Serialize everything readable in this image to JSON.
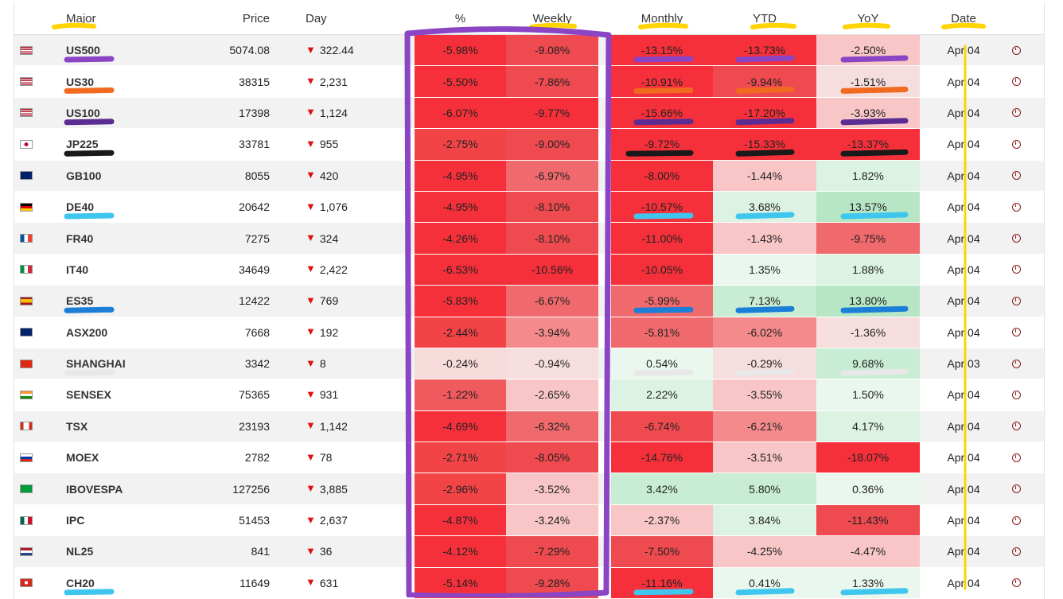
{
  "columns": {
    "major": "Major",
    "price": "Price",
    "day": "Day",
    "pct": "%",
    "weekly": "Weekly",
    "monthly": "Monthly",
    "ytd": "YTD",
    "yoy": "YoY",
    "date": "Date"
  },
  "rows": [
    {
      "flag": "us",
      "symbol": "US500",
      "price": "5074.08",
      "day": "322.44",
      "pct": "-5.98%",
      "weekly": "-9.08%",
      "monthly": "-13.15%",
      "ytd": "-13.73%",
      "yoy": "-2.50%",
      "date": "Apr 04"
    },
    {
      "flag": "us",
      "symbol": "US30",
      "price": "38315",
      "day": "2,231",
      "pct": "-5.50%",
      "weekly": "-7.86%",
      "monthly": "-10.91%",
      "ytd": "-9.94%",
      "yoy": "-1.51%",
      "date": "Apr 04"
    },
    {
      "flag": "us",
      "symbol": "US100",
      "price": "17398",
      "day": "1,124",
      "pct": "-6.07%",
      "weekly": "-9.77%",
      "monthly": "-15.66%",
      "ytd": "-17.20%",
      "yoy": "-3.93%",
      "date": "Apr 04"
    },
    {
      "flag": "jp",
      "symbol": "JP225",
      "price": "33781",
      "day": "955",
      "pct": "-2.75%",
      "weekly": "-9.00%",
      "monthly": "-9.72%",
      "ytd": "-15.33%",
      "yoy": "-13.37%",
      "date": "Apr 04"
    },
    {
      "flag": "gb",
      "symbol": "GB100",
      "price": "8055",
      "day": "420",
      "pct": "-4.95%",
      "weekly": "-6.97%",
      "monthly": "-8.00%",
      "ytd": "-1.44%",
      "yoy": "1.82%",
      "date": "Apr 04"
    },
    {
      "flag": "de",
      "symbol": "DE40",
      "price": "20642",
      "day": "1,076",
      "pct": "-4.95%",
      "weekly": "-8.10%",
      "monthly": "-10.57%",
      "ytd": "3.68%",
      "yoy": "13.57%",
      "date": "Apr 04"
    },
    {
      "flag": "fr",
      "symbol": "FR40",
      "price": "7275",
      "day": "324",
      "pct": "-4.26%",
      "weekly": "-8.10%",
      "monthly": "-11.00%",
      "ytd": "-1.43%",
      "yoy": "-9.75%",
      "date": "Apr 04"
    },
    {
      "flag": "it",
      "symbol": "IT40",
      "price": "34649",
      "day": "2,422",
      "pct": "-6.53%",
      "weekly": "-10.56%",
      "monthly": "-10.05%",
      "ytd": "1.35%",
      "yoy": "1.88%",
      "date": "Apr 04"
    },
    {
      "flag": "es",
      "symbol": "ES35",
      "price": "12422",
      "day": "769",
      "pct": "-5.83%",
      "weekly": "-6.67%",
      "monthly": "-5.99%",
      "ytd": "7.13%",
      "yoy": "13.80%",
      "date": "Apr 04"
    },
    {
      "flag": "au",
      "symbol": "ASX200",
      "price": "7668",
      "day": "192",
      "pct": "-2.44%",
      "weekly": "-3.94%",
      "monthly": "-5.81%",
      "ytd": "-6.02%",
      "yoy": "-1.36%",
      "date": "Apr 04"
    },
    {
      "flag": "cn",
      "symbol": "SHANGHAI",
      "price": "3342",
      "day": "8",
      "pct": "-0.24%",
      "weekly": "-0.94%",
      "monthly": "0.54%",
      "ytd": "-0.29%",
      "yoy": "9.68%",
      "date": "Apr 03"
    },
    {
      "flag": "in",
      "symbol": "SENSEX",
      "price": "75365",
      "day": "931",
      "pct": "-1.22%",
      "weekly": "-2.65%",
      "monthly": "2.22%",
      "ytd": "-3.55%",
      "yoy": "1.50%",
      "date": "Apr 04"
    },
    {
      "flag": "ca",
      "symbol": "TSX",
      "price": "23193",
      "day": "1,142",
      "pct": "-4.69%",
      "weekly": "-6.32%",
      "monthly": "-6.74%",
      "ytd": "-6.21%",
      "yoy": "4.17%",
      "date": "Apr 04"
    },
    {
      "flag": "ru",
      "symbol": "MOEX",
      "price": "2782",
      "day": "78",
      "pct": "-2.71%",
      "weekly": "-8.05%",
      "monthly": "-14.76%",
      "ytd": "-3.51%",
      "yoy": "-18.07%",
      "date": "Apr 04"
    },
    {
      "flag": "br",
      "symbol": "IBOVESPA",
      "price": "127256",
      "day": "3,885",
      "pct": "-2.96%",
      "weekly": "-3.52%",
      "monthly": "3.42%",
      "ytd": "5.80%",
      "yoy": "0.36%",
      "date": "Apr 04"
    },
    {
      "flag": "mx",
      "symbol": "IPC",
      "price": "51453",
      "day": "2,637",
      "pct": "-4.87%",
      "weekly": "-3.24%",
      "monthly": "-2.37%",
      "ytd": "3.84%",
      "yoy": "-11.43%",
      "date": "Apr 04"
    },
    {
      "flag": "nl",
      "symbol": "NL25",
      "price": "841",
      "day": "36",
      "pct": "-4.12%",
      "weekly": "-7.29%",
      "monthly": "-7.50%",
      "ytd": "-4.25%",
      "yoy": "-4.47%",
      "date": "Apr 04"
    },
    {
      "flag": "ch",
      "symbol": "CH20",
      "price": "11649",
      "day": "631",
      "pct": "-5.14%",
      "weekly": "-9.28%",
      "monthly": "-11.16%",
      "ytd": "0.41%",
      "yoy": "1.33%",
      "date": "Apr 04"
    }
  ],
  "colors": {
    "highlight_header": "#ffd400",
    "highlight_box": "#8a44c4",
    "neg_strong": "#f5303a",
    "neg_mid": "#e83a3f",
    "pos_strong": "#8fdca4",
    "flag_red": "#d52b1e",
    "flag_blue": "#2a4a9a"
  },
  "annotations": {
    "row_marks": [
      "purple",
      "orange",
      "purple-dark",
      "black",
      "none",
      "cyan",
      "none",
      "none",
      "blue",
      "none",
      "white",
      "none",
      "none",
      "none",
      "none",
      "none",
      "none",
      "cyan"
    ]
  }
}
